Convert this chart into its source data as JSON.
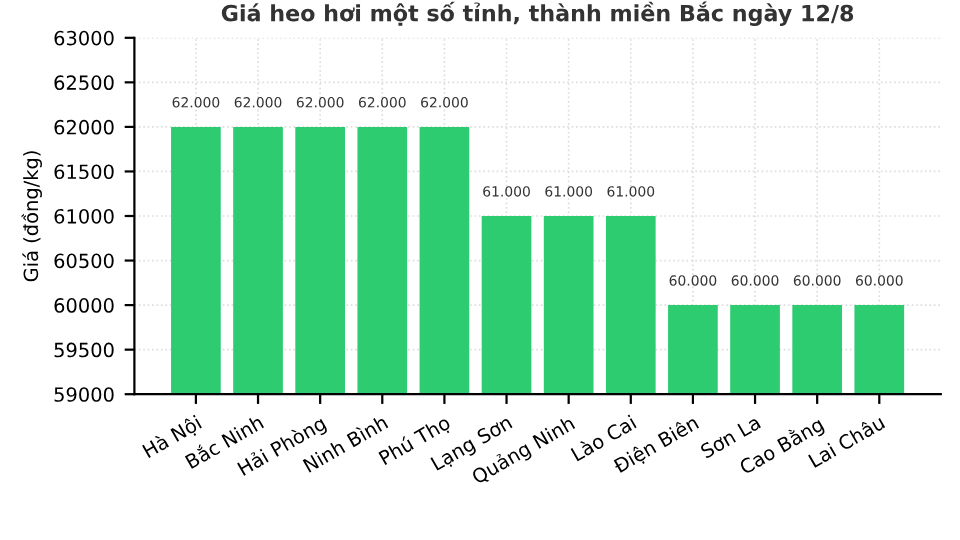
{
  "chart_data": {
    "type": "bar",
    "title": "Giá heo hơi một số tỉnh, thành miền Bắc ngày 12/8",
    "ylabel": "Giá (đồng/kg)",
    "categories": [
      "Hà Nội",
      "Bắc Ninh",
      "Hải Phòng",
      "Ninh Bình",
      "Phú Thọ",
      "Lạng Sơn",
      "Quảng Ninh",
      "Lào Cai",
      "Điện Biên",
      "Sơn La",
      "Cao Bằng",
      "Lai Châu"
    ],
    "values": [
      62000,
      62000,
      62000,
      62000,
      62000,
      61000,
      61000,
      61000,
      60000,
      60000,
      60000,
      60000
    ],
    "value_labels": [
      "62.000",
      "62.000",
      "62.000",
      "62.000",
      "62.000",
      "61.000",
      "61.000",
      "61.000",
      "60.000",
      "60.000",
      "60.000",
      "60.000"
    ],
    "color": "#2ecc71",
    "ylim": [
      59000,
      63000
    ],
    "yticks": [
      59000,
      59500,
      60000,
      60500,
      61000,
      61500,
      62000,
      62500,
      63000
    ],
    "grid": true
  }
}
